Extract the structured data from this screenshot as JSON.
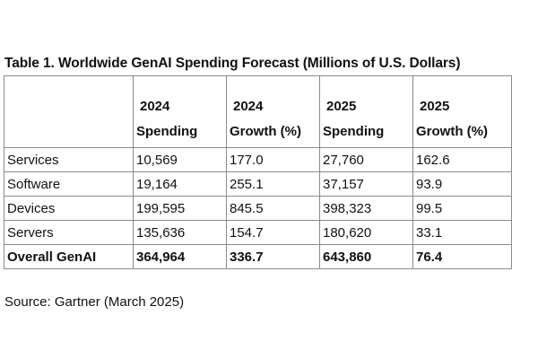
{
  "title": "Table 1. Worldwide GenAI Spending Forecast (Millions of U.S. Dollars)",
  "columns": [
    {
      "year": "2024",
      "metric": "Spending"
    },
    {
      "year": "2024",
      "metric": "Growth  (%)"
    },
    {
      "year": "2025",
      "metric": "Spending"
    },
    {
      "year": "2025",
      "metric": "Growth  (%)"
    }
  ],
  "rows": [
    {
      "label": "Services",
      "values": [
        "10,569",
        "177.0",
        "27,760",
        "162.6"
      ]
    },
    {
      "label": "Software",
      "values": [
        "19,164",
        "255.1",
        "37,157",
        "93.9"
      ]
    },
    {
      "label": "Devices",
      "values": [
        "199,595",
        "845.5",
        "398,323",
        "99.5"
      ]
    },
    {
      "label": "Servers",
      "values": [
        "135,636",
        "154.7",
        "180,620",
        "33.1"
      ]
    },
    {
      "label": "Overall GenAI",
      "values": [
        "364,964",
        "336.7",
        "643,860",
        "76.4"
      ]
    }
  ],
  "source": "Source: Gartner (March 2025)"
}
